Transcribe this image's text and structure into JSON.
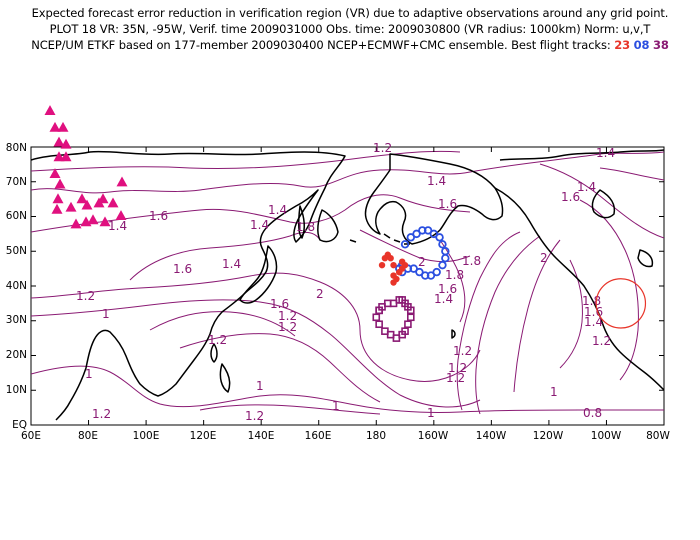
{
  "header": {
    "line1": "Expected forecast error reduction in verification region (VR) due to adaptive observations around any grid point.",
    "line2": "PLOT 18 VR: 35N, -95W, Verif. time 2009031000 Obs. time: 2009030800 (VR radius: 1000km) Norm: u,v,T",
    "line3_prefix": "NCEP/UM ETKF based on 177-member 2009030400 NCEP+ECMWF+CMC ensemble. Best flight tracks:",
    "track_a": "23",
    "track_b": "08",
    "track_c": "38"
  },
  "colors": {
    "contour": "#8a1a73",
    "coast": "#000000",
    "triangle": "#e0107f",
    "track_red": "#e8352a",
    "track_blue": "#2b4fe0",
    "track_purple": "#8a1a73",
    "verification_circle": "#e8352a"
  },
  "axes": {
    "lat_labels": [
      "80N",
      "70N",
      "60N",
      "50N",
      "40N",
      "30N",
      "20N",
      "10N",
      "EQ"
    ],
    "lon_labels": [
      "60E",
      "80E",
      "100E",
      "120E",
      "140E",
      "160E",
      "180",
      "160W",
      "140W",
      "120W",
      "100W",
      "80W"
    ]
  },
  "contour_labels": [
    "1.2",
    "1.4",
    "1.4",
    "1.6",
    "1.4",
    "1.6",
    "1.4",
    "1.8",
    "1.4",
    "1.6",
    "1.4",
    "1.6",
    "2",
    "2",
    "1.8",
    "1.6",
    "1.4",
    "1.2",
    "1.4",
    "1.8",
    "2",
    "1.8",
    "1.6",
    "1.6",
    "1.4",
    "1.2",
    "1.2",
    "1.2",
    "1",
    "1.2",
    "1",
    "1",
    "1",
    "1.2",
    "1.2",
    "1",
    "0.8",
    "1.2",
    "1",
    "1.2",
    "1.2"
  ],
  "map_data": {
    "verification_region": {
      "lat": 35,
      "lon": -95,
      "radius_km": 1000
    },
    "raob_sites": [
      [
        67,
        -64
      ],
      [
        72,
        -56
      ],
      [
        80,
        -56
      ],
      [
        76,
        -49
      ],
      [
        83,
        -48
      ],
      [
        76,
        -42
      ],
      [
        83,
        -42
      ],
      [
        72,
        -34
      ],
      [
        77,
        -29
      ],
      [
        75,
        -22
      ],
      [
        74,
        -17
      ],
      [
        88,
        -18
      ],
      [
        93,
        -10
      ],
      [
        99,
        -22
      ],
      [
        103,
        -11
      ],
      [
        104,
        -19
      ],
      [
        110,
        -12
      ],
      [
        116,
        -20
      ],
      [
        120,
        -22
      ],
      [
        122,
        -11
      ],
      [
        130,
        -20
      ],
      [
        138,
        -14
      ],
      [
        139,
        -30
      ]
    ],
    "track_red": [
      [
        182,
        46
      ],
      [
        183,
        48
      ],
      [
        184,
        49
      ],
      [
        185,
        48
      ],
      [
        186,
        46
      ],
      [
        186,
        43
      ],
      [
        186,
        41
      ],
      [
        187,
        42
      ],
      [
        188,
        44
      ],
      [
        189,
        45
      ],
      [
        190,
        46
      ],
      [
        189,
        47
      ],
      [
        188,
        44
      ]
    ],
    "track_blue": [
      [
        190,
        52
      ],
      [
        192,
        54
      ],
      [
        194,
        55
      ],
      [
        196,
        56
      ],
      [
        198,
        56
      ],
      [
        200,
        55
      ],
      [
        202,
        54
      ],
      [
        203,
        52
      ],
      [
        204,
        50
      ],
      [
        204,
        48
      ],
      [
        203,
        46
      ],
      [
        201,
        44
      ],
      [
        199,
        43
      ],
      [
        197,
        43
      ],
      [
        195,
        44
      ],
      [
        193,
        45
      ],
      [
        191,
        45
      ],
      [
        189,
        44
      ],
      [
        188,
        45
      ],
      [
        189,
        46
      ]
    ],
    "track_purple": [
      [
        181,
        33
      ],
      [
        182,
        34
      ],
      [
        184,
        35
      ],
      [
        186,
        35
      ],
      [
        188,
        36
      ],
      [
        189,
        36
      ],
      [
        190,
        35
      ],
      [
        191,
        34
      ],
      [
        192,
        33
      ],
      [
        192,
        31
      ],
      [
        191,
        29
      ],
      [
        190,
        27
      ],
      [
        189,
        26
      ],
      [
        187,
        25
      ],
      [
        185,
        26
      ],
      [
        183,
        27
      ],
      [
        181,
        29
      ],
      [
        180,
        31
      ],
      [
        181,
        33
      ]
    ]
  }
}
